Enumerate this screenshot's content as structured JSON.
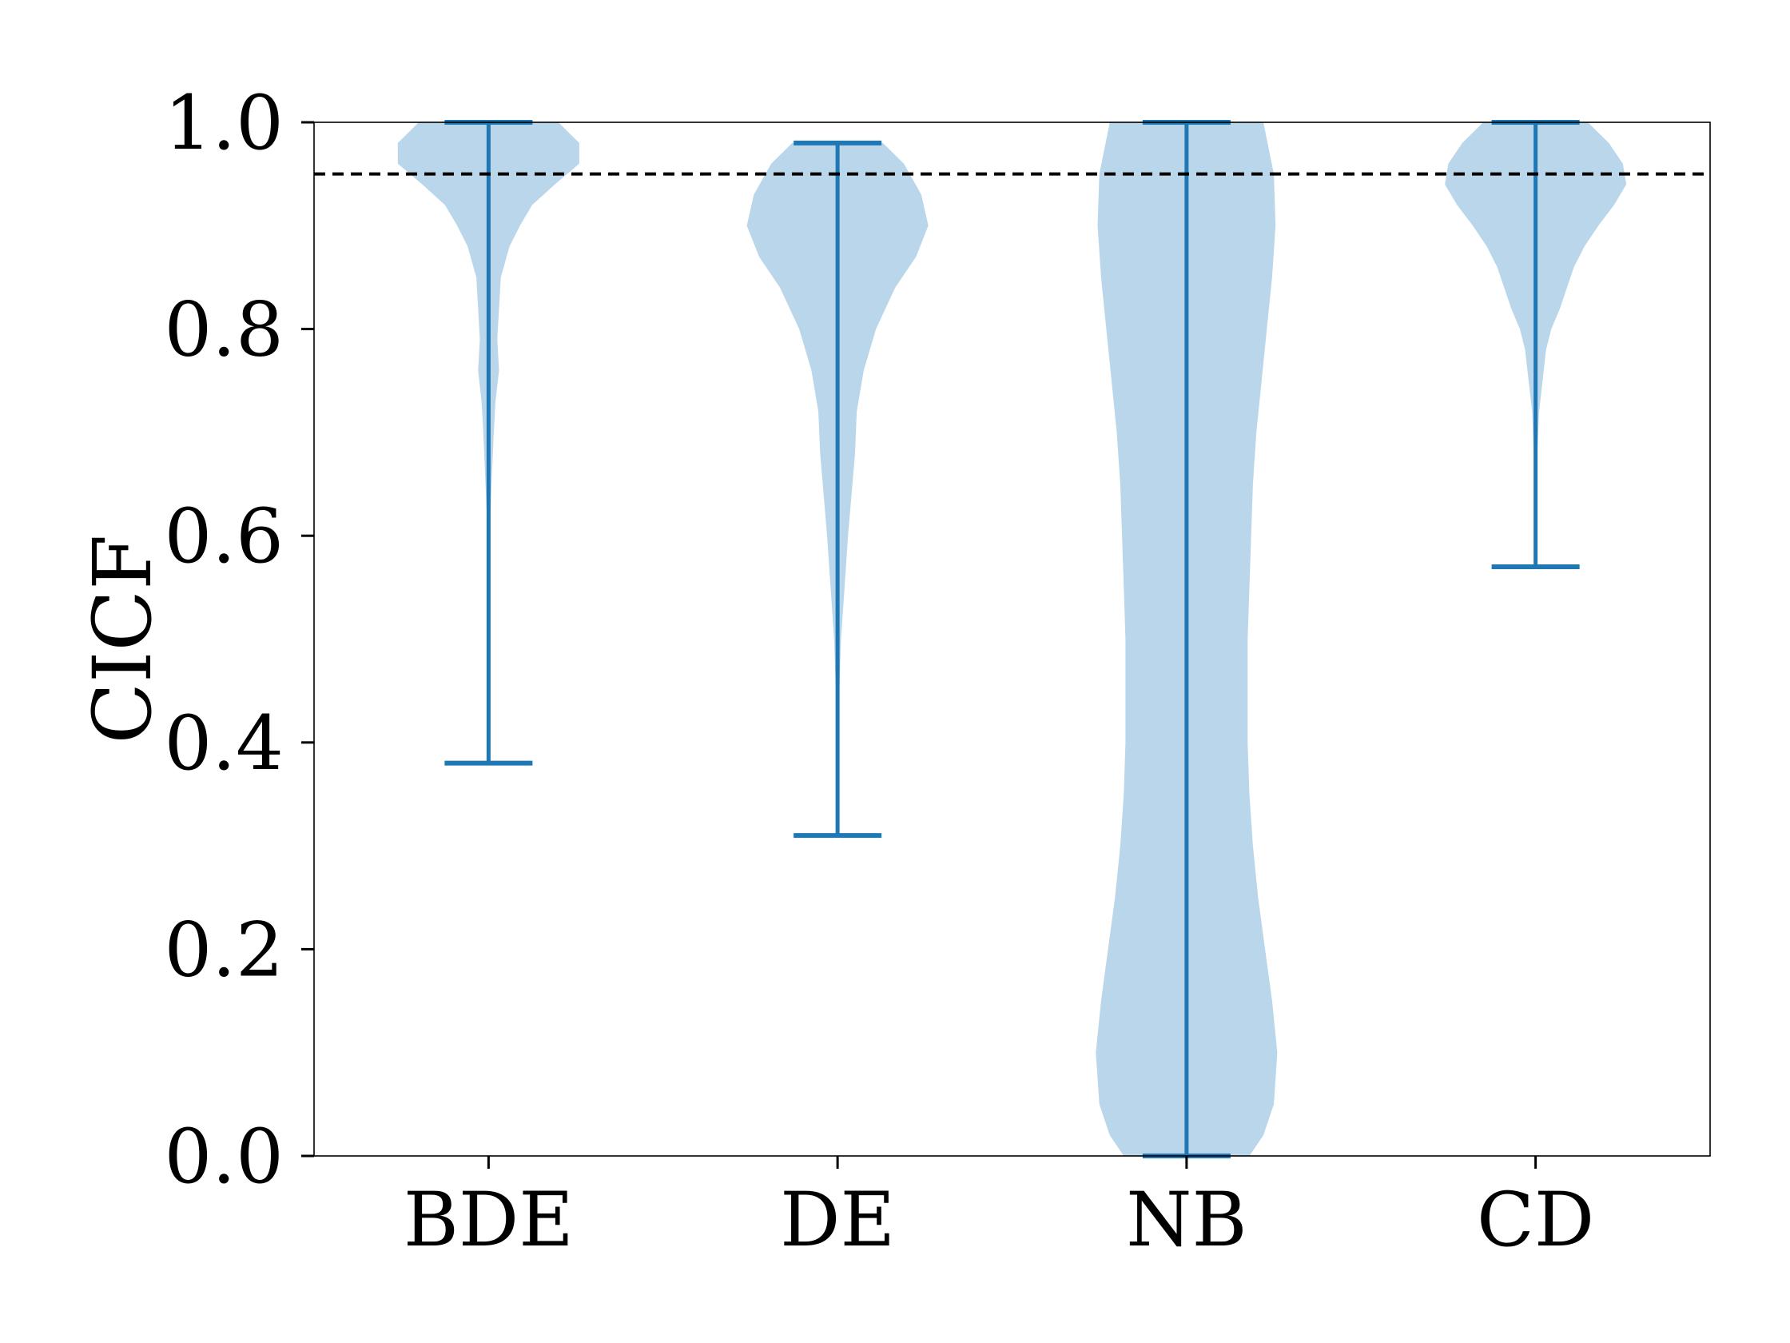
{
  "chart_data": {
    "type": "violin",
    "title": "",
    "xlabel": "",
    "ylabel": "CICF",
    "ylim": [
      0,
      1
    ],
    "yticks": [
      0.0,
      0.2,
      0.4,
      0.6,
      0.8,
      1.0
    ],
    "ytick_labels": [
      "0.0",
      "0.2",
      "0.4",
      "0.6",
      "0.8",
      "1.0"
    ],
    "categories": [
      "BDE",
      "DE",
      "NB",
      "CD"
    ],
    "reference_line": {
      "y": 0.95,
      "style": "dashed",
      "color": "#000000"
    },
    "grid": false,
    "colors": {
      "fill": "#bad6ea",
      "line": "#1f77b4"
    },
    "series": [
      {
        "category": "BDE",
        "min": 0.38,
        "max": 1.0,
        "density": [
          [
            1.0,
            0.4
          ],
          [
            0.98,
            0.52
          ],
          [
            0.96,
            0.52
          ],
          [
            0.94,
            0.38
          ],
          [
            0.92,
            0.25
          ],
          [
            0.9,
            0.18
          ],
          [
            0.88,
            0.12
          ],
          [
            0.85,
            0.07
          ],
          [
            0.82,
            0.06
          ],
          [
            0.79,
            0.05
          ],
          [
            0.76,
            0.06
          ],
          [
            0.73,
            0.04
          ],
          [
            0.7,
            0.03
          ],
          [
            0.66,
            0.02
          ],
          [
            0.62,
            0.01
          ],
          [
            0.55,
            0.006
          ],
          [
            0.48,
            0.004
          ],
          [
            0.42,
            0.003
          ],
          [
            0.38,
            0.002
          ]
        ]
      },
      {
        "category": "DE",
        "min": 0.31,
        "max": 0.98,
        "density": [
          [
            0.98,
            0.26
          ],
          [
            0.96,
            0.38
          ],
          [
            0.93,
            0.48
          ],
          [
            0.9,
            0.52
          ],
          [
            0.87,
            0.45
          ],
          [
            0.84,
            0.33
          ],
          [
            0.8,
            0.22
          ],
          [
            0.76,
            0.15
          ],
          [
            0.72,
            0.11
          ],
          [
            0.68,
            0.1
          ],
          [
            0.64,
            0.08
          ],
          [
            0.6,
            0.06
          ],
          [
            0.55,
            0.04
          ],
          [
            0.5,
            0.02
          ],
          [
            0.45,
            0.01
          ],
          [
            0.4,
            0.005
          ],
          [
            0.35,
            0.003
          ],
          [
            0.31,
            0.002
          ]
        ]
      },
      {
        "category": "NB",
        "min": 0.0,
        "max": 1.0,
        "density": [
          [
            1.0,
            0.44
          ],
          [
            0.95,
            0.5
          ],
          [
            0.9,
            0.51
          ],
          [
            0.85,
            0.49
          ],
          [
            0.8,
            0.46
          ],
          [
            0.75,
            0.43
          ],
          [
            0.7,
            0.4
          ],
          [
            0.65,
            0.38
          ],
          [
            0.6,
            0.37
          ],
          [
            0.55,
            0.36
          ],
          [
            0.5,
            0.35
          ],
          [
            0.45,
            0.35
          ],
          [
            0.4,
            0.35
          ],
          [
            0.35,
            0.36
          ],
          [
            0.3,
            0.38
          ],
          [
            0.25,
            0.41
          ],
          [
            0.2,
            0.45
          ],
          [
            0.15,
            0.49
          ],
          [
            0.1,
            0.52
          ],
          [
            0.05,
            0.5
          ],
          [
            0.02,
            0.44
          ],
          [
            0.0,
            0.36
          ]
        ]
      },
      {
        "category": "CD",
        "min": 0.57,
        "max": 1.0,
        "density": [
          [
            1.0,
            0.3
          ],
          [
            0.98,
            0.42
          ],
          [
            0.96,
            0.5
          ],
          [
            0.94,
            0.52
          ],
          [
            0.92,
            0.45
          ],
          [
            0.9,
            0.36
          ],
          [
            0.88,
            0.28
          ],
          [
            0.86,
            0.22
          ],
          [
            0.84,
            0.18
          ],
          [
            0.82,
            0.14
          ],
          [
            0.8,
            0.09
          ],
          [
            0.78,
            0.06
          ],
          [
            0.75,
            0.04
          ],
          [
            0.72,
            0.02
          ],
          [
            0.68,
            0.01
          ],
          [
            0.64,
            0.005
          ],
          [
            0.6,
            0.003
          ],
          [
            0.57,
            0.002
          ]
        ]
      }
    ]
  }
}
